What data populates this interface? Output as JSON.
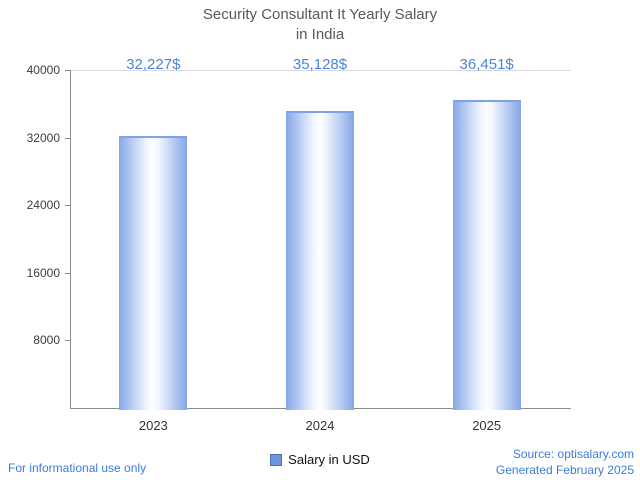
{
  "title": "Security Consultant It Yearly Salary\nin India",
  "chart_data": {
    "type": "bar",
    "title": "Security Consultant It Yearly Salary in India",
    "categories": [
      "2023",
      "2024",
      "2025"
    ],
    "values": [
      32227,
      35128,
      36451
    ],
    "value_labels": [
      "32,227$",
      "35,128$",
      "36,451$"
    ],
    "series_name": "Salary in USD",
    "xlabel": "",
    "ylabel": "",
    "ylim": [
      0,
      40000
    ],
    "yticks": [
      8000,
      16000,
      24000,
      32000,
      40000
    ],
    "grid": false,
    "legend_position": "bottom-center",
    "colors": {
      "bar_edge": "#84a6e7",
      "bar_center": "#ffffff",
      "value_label_text": "#4a86d8",
      "axis": "#8c8c8c"
    }
  },
  "legend": {
    "label": "Salary in USD"
  },
  "footer": {
    "left": "For informational use only",
    "source": "Source: optisalary.com",
    "generated": "Generated February 2025"
  }
}
